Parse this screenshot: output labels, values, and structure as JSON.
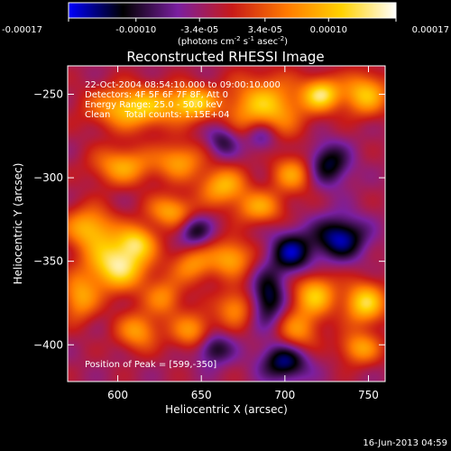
{
  "chart_data": {
    "type": "heatmap",
    "title": "Reconstructed RHESSI Image",
    "xlabel": "Heliocentric X (arcsec)",
    "ylabel": "Heliocentric Y (arcsec)",
    "xlim": [
      570,
      760
    ],
    "ylim": [
      -422,
      -233
    ],
    "x_ticks": [
      600,
      650,
      700,
      750
    ],
    "y_ticks": [
      -250,
      -300,
      -350,
      -400
    ],
    "colorbar": {
      "range": [
        -0.00017,
        0.00017
      ],
      "tick_values": [
        -0.00017,
        -0.0001,
        -3.4e-05,
        3.4e-05,
        0.0001,
        0.00017
      ],
      "tick_labels": [
        "-0.00017",
        "-0.00010",
        "-3.4e-05",
        "3.4e-05",
        "0.00010",
        "0.00017"
      ],
      "unit_main": "(photons cm",
      "unit_exp1": "-2",
      "unit_mid": " s",
      "unit_exp2": "-1",
      "unit_tail": " asec",
      "unit_exp3": "-2",
      "unit_close": ")"
    },
    "colors": [
      "#0000ff",
      "#000000",
      "#7a1fa0",
      "#c81a18",
      "#ff7a00",
      "#ffd200",
      "#ffffff"
    ],
    "annotation_lines": [
      "22-Oct-2004 08:54:10.000 to 09:00:10.000",
      "Detectors: 4F 5F 6F 7F 8F, Att 0",
      "Energy Range: 25.0 - 50.0 keV",
      "Clean     Total counts: 1.15E+04"
    ],
    "peak_label": "Position of Peak = [599,-350]",
    "peak": [
      599,
      -350
    ],
    "sources": [
      {
        "x": 600,
        "y": -352,
        "sx": 13,
        "sy": 11,
        "amp": 1.0
      },
      {
        "x": 583,
        "y": -330,
        "sx": 11,
        "sy": 9,
        "amp": 0.7
      },
      {
        "x": 610,
        "y": -258,
        "sx": 18,
        "sy": 9,
        "amp": 0.85
      },
      {
        "x": 645,
        "y": -255,
        "sx": 10,
        "sy": 7,
        "amp": 0.75
      },
      {
        "x": 688,
        "y": -258,
        "sx": 16,
        "sy": 13,
        "amp": 0.8
      },
      {
        "x": 722,
        "y": -250,
        "sx": 8,
        "sy": 7,
        "amp": 0.85
      },
      {
        "x": 748,
        "y": -250,
        "sx": 10,
        "sy": 9,
        "amp": 0.75
      },
      {
        "x": 603,
        "y": -293,
        "sx": 13,
        "sy": 8,
        "amp": 0.65
      },
      {
        "x": 637,
        "y": -290,
        "sx": 10,
        "sy": 8,
        "amp": 0.6
      },
      {
        "x": 663,
        "y": -305,
        "sx": 10,
        "sy": 8,
        "amp": 0.7
      },
      {
        "x": 685,
        "y": -318,
        "sx": 10,
        "sy": 7,
        "amp": 0.6
      },
      {
        "x": 705,
        "y": -298,
        "sx": 9,
        "sy": 8,
        "amp": 0.6
      },
      {
        "x": 632,
        "y": -320,
        "sx": 10,
        "sy": 7,
        "amp": 0.65
      },
      {
        "x": 612,
        "y": -338,
        "sx": 8,
        "sy": 7,
        "amp": 0.6
      },
      {
        "x": 577,
        "y": -372,
        "sx": 8,
        "sy": 10,
        "amp": 0.6
      },
      {
        "x": 645,
        "y": -352,
        "sx": 9,
        "sy": 8,
        "amp": 0.55
      },
      {
        "x": 668,
        "y": -348,
        "sx": 9,
        "sy": 8,
        "amp": 0.65
      },
      {
        "x": 628,
        "y": -372,
        "sx": 8,
        "sy": 8,
        "amp": 0.5
      },
      {
        "x": 612,
        "y": -392,
        "sx": 9,
        "sy": 8,
        "amp": 0.6
      },
      {
        "x": 645,
        "y": -392,
        "sx": 9,
        "sy": 8,
        "amp": 0.6
      },
      {
        "x": 670,
        "y": -378,
        "sx": 8,
        "sy": 8,
        "amp": 0.55
      },
      {
        "x": 708,
        "y": -392,
        "sx": 9,
        "sy": 9,
        "amp": 0.55
      },
      {
        "x": 718,
        "y": -370,
        "sx": 9,
        "sy": 9,
        "amp": 0.75
      },
      {
        "x": 748,
        "y": -375,
        "sx": 9,
        "sy": 9,
        "amp": 0.85
      },
      {
        "x": 745,
        "y": -402,
        "sx": 9,
        "sy": 7,
        "amp": 0.6
      },
      {
        "x": 686,
        "y": -275,
        "sx": 7,
        "sy": 7,
        "amp": -0.5
      },
      {
        "x": 726,
        "y": -292,
        "sx": 9,
        "sy": 9,
        "amp": -0.6
      },
      {
        "x": 733,
        "y": -336,
        "sx": 11,
        "sy": 9,
        "amp": -0.75
      },
      {
        "x": 704,
        "y": -345,
        "sx": 9,
        "sy": 9,
        "amp": -0.7
      },
      {
        "x": 690,
        "y": -372,
        "sx": 7,
        "sy": 11,
        "amp": -0.65
      },
      {
        "x": 700,
        "y": -410,
        "sx": 10,
        "sy": 8,
        "amp": -0.7
      },
      {
        "x": 657,
        "y": -402,
        "sx": 8,
        "sy": 7,
        "amp": -0.55
      },
      {
        "x": 646,
        "y": -332,
        "sx": 7,
        "sy": 7,
        "amp": -0.5
      },
      {
        "x": 663,
        "y": -278,
        "sx": 7,
        "sy": 7,
        "amp": -0.45
      }
    ],
    "background": -0.15
  },
  "footer": {
    "timestamp": "16-Jun-2013 04:59"
  }
}
